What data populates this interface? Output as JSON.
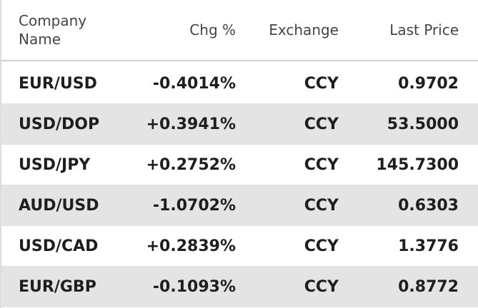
{
  "table": {
    "header": [
      "Company Name",
      "Chg %",
      "Exchange",
      "Last Price"
    ],
    "rows": [
      [
        "EUR/USD",
        "-0.4014%",
        "CCY",
        "0.9702"
      ],
      [
        "USD/DOP",
        "+0.3941%",
        "CCY",
        "53.5000"
      ],
      [
        "USD/JPY",
        "+0.2752%",
        "CCY",
        "145.7300"
      ],
      [
        "AUD/USD",
        "-1.0702%",
        "CCY",
        "0.6303"
      ],
      [
        "USD/CAD",
        "+0.2839%",
        "CCY",
        "1.3776"
      ],
      [
        "EUR/GBP",
        "-0.1093%",
        "CCY",
        "0.8772"
      ]
    ]
  }
}
